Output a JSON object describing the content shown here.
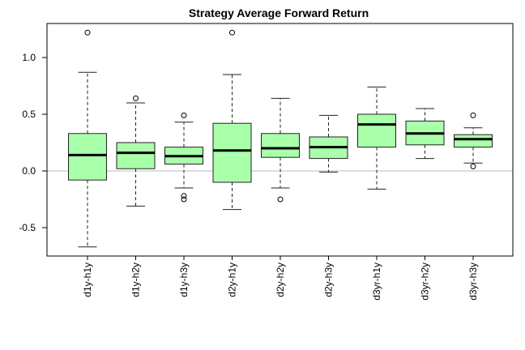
{
  "chart_data": {
    "type": "boxplot",
    "title": "Strategy Average Forward Return",
    "xlabel": "",
    "ylabel": "",
    "ylim": [
      -0.75,
      1.3
    ],
    "yticks": [
      -0.5,
      0.0,
      0.5,
      1.0
    ],
    "ytick_labels": [
      "-0.5",
      "0.0",
      "0.5",
      "1.0"
    ],
    "reference_line": 0.0,
    "colors": {
      "box_fill": "#aaffaa",
      "box_stroke": "#222222",
      "median": "#000000",
      "reference": "#bbbbbb",
      "axis": "#000000"
    },
    "categories": [
      "d1y-h1y",
      "d1y-h2y",
      "d1y-h3y",
      "d2y-h1y",
      "d2y-h2y",
      "d2y-h3y",
      "d3yr-h1y",
      "d3yr-h2y",
      "d3yr-h3y"
    ],
    "boxes": [
      {
        "low": -0.67,
        "q1": -0.08,
        "median": 0.14,
        "q3": 0.33,
        "high": 0.87,
        "outliers": [
          1.22
        ]
      },
      {
        "low": -0.31,
        "q1": 0.02,
        "median": 0.16,
        "q3": 0.25,
        "high": 0.6,
        "outliers": [
          0.64
        ]
      },
      {
        "low": -0.15,
        "q1": 0.06,
        "median": 0.13,
        "q3": 0.21,
        "high": 0.43,
        "outliers": [
          0.49,
          -0.22,
          -0.25
        ]
      },
      {
        "low": -0.34,
        "q1": -0.1,
        "median": 0.18,
        "q3": 0.42,
        "high": 0.85,
        "outliers": [
          1.22
        ]
      },
      {
        "low": -0.15,
        "q1": 0.12,
        "median": 0.2,
        "q3": 0.33,
        "high": 0.64,
        "outliers": [
          -0.25
        ]
      },
      {
        "low": -0.01,
        "q1": 0.11,
        "median": 0.21,
        "q3": 0.3,
        "high": 0.49,
        "outliers": []
      },
      {
        "low": -0.16,
        "q1": 0.21,
        "median": 0.41,
        "q3": 0.5,
        "high": 0.74,
        "outliers": []
      },
      {
        "low": 0.11,
        "q1": 0.23,
        "median": 0.33,
        "q3": 0.44,
        "high": 0.55,
        "outliers": []
      },
      {
        "low": 0.07,
        "q1": 0.21,
        "median": 0.28,
        "q3": 0.32,
        "high": 0.38,
        "outliers": [
          0.49,
          0.04
        ]
      }
    ]
  }
}
